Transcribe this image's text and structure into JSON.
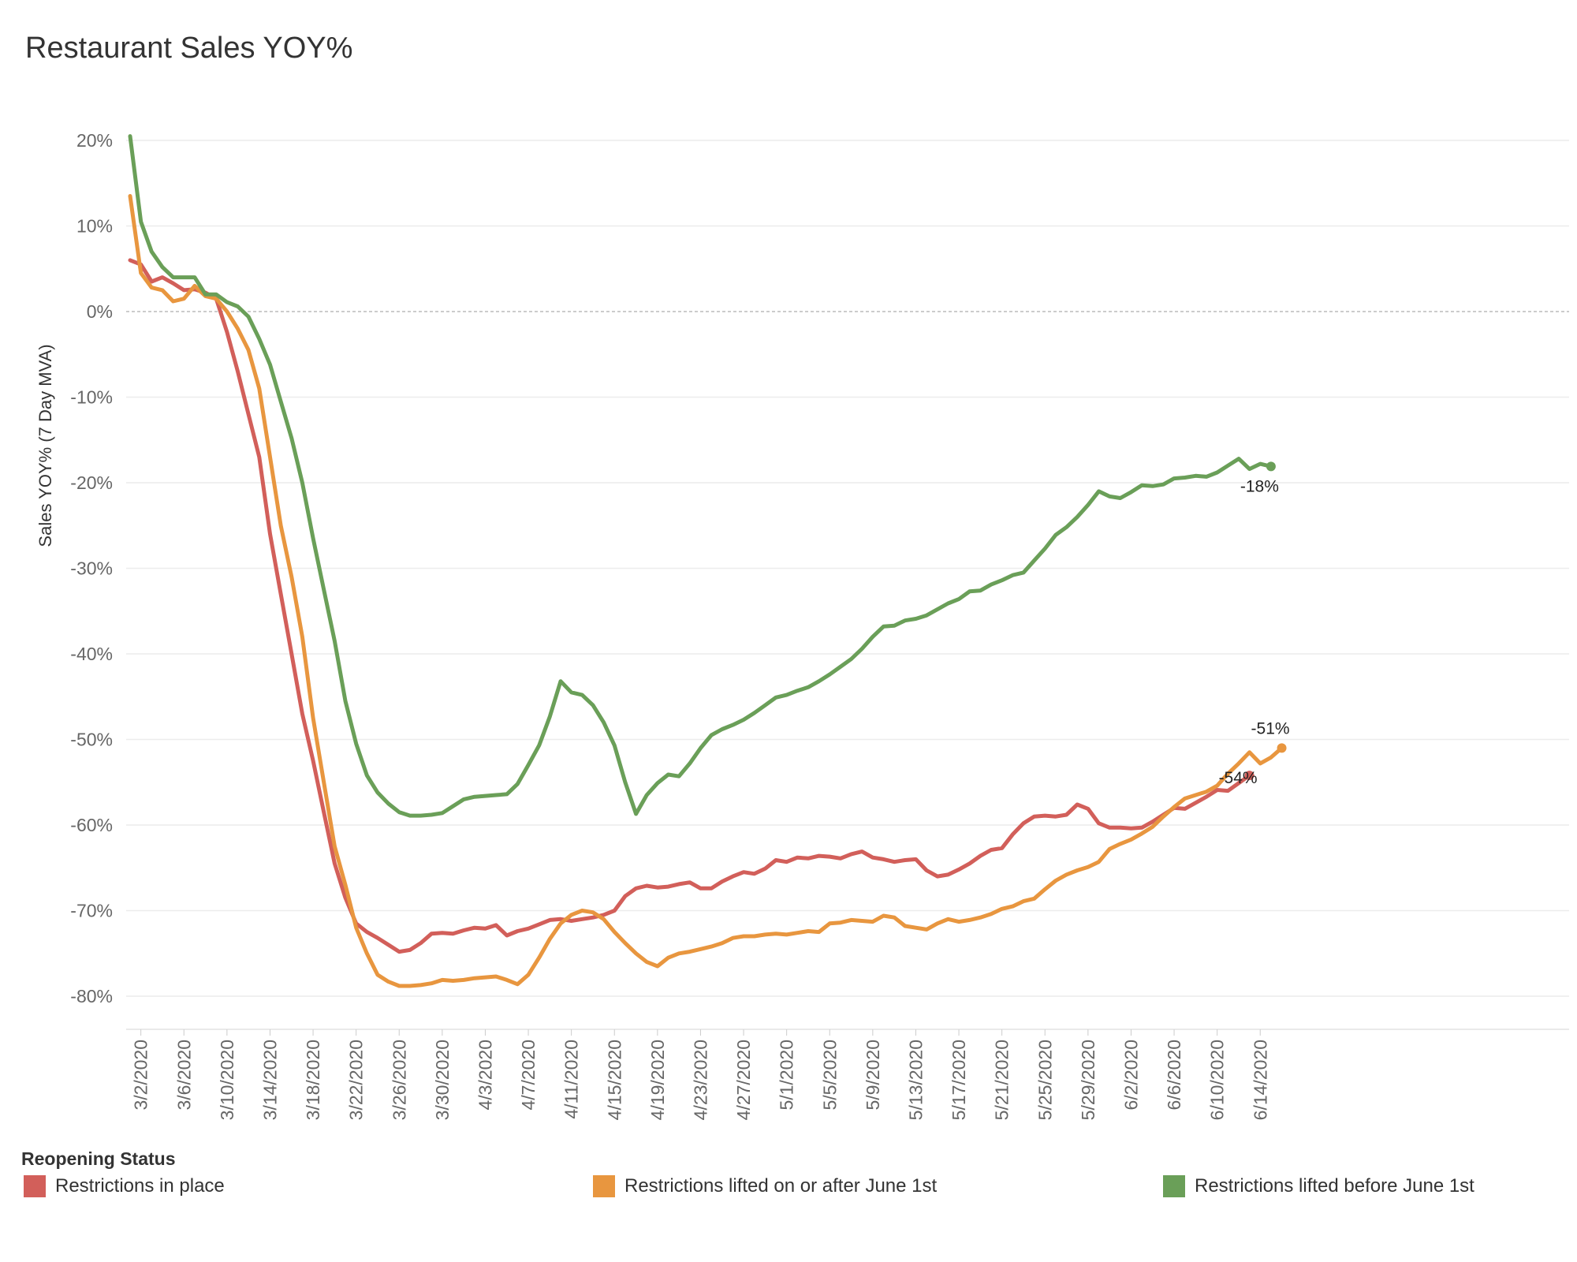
{
  "title": "Restaurant Sales YOY%",
  "chart_data": {
    "type": "line",
    "title": "Restaurant Sales YOY%",
    "xlabel": "",
    "ylabel": "Sales YOY% (7 Day MVA)",
    "x_start": "3/1/2020",
    "x_end": "6/17/2020",
    "x_tick_labels": [
      "3/2/2020",
      "3/6/2020",
      "3/10/2020",
      "3/14/2020",
      "3/18/2020",
      "3/22/2020",
      "3/26/2020",
      "3/30/2020",
      "4/3/2020",
      "4/7/2020",
      "4/11/2020",
      "4/15/2020",
      "4/19/2020",
      "4/23/2020",
      "4/27/2020",
      "5/1/2020",
      "5/5/2020",
      "5/9/2020",
      "5/13/2020",
      "5/17/2020",
      "5/21/2020",
      "5/25/2020",
      "5/29/2020",
      "6/2/2020",
      "6/6/2020",
      "6/10/2020",
      "6/14/2020"
    ],
    "y_ticks": [
      20,
      10,
      0,
      -10,
      -20,
      -30,
      -40,
      -50,
      -60,
      -70,
      -80
    ],
    "y_tick_labels": [
      "20%",
      "10%",
      "0%",
      "-10%",
      "-20%",
      "-30%",
      "-40%",
      "-50%",
      "-60%",
      "-70%",
      "-80%"
    ],
    "ylim": [
      -84,
      22
    ],
    "zero_line": true,
    "grid": true,
    "legend": {
      "title": "Reopening Status",
      "position": "bottom"
    },
    "series": [
      {
        "name": "Restrictions in place",
        "color": "#d25f5a",
        "end_label": "-54%",
        "values": [
          6,
          5.5,
          3.5,
          4,
          3.3,
          2.5,
          2.6,
          2.2,
          1.5,
          -2.4,
          -7,
          -12,
          -17,
          -26,
          -33,
          -40,
          -47,
          -52.5,
          -58.5,
          -64.5,
          -68.5,
          -71.5,
          -72.5,
          -73.2,
          -74,
          -74.8,
          -74.6,
          -73.8,
          -72.7,
          -72.6,
          -72.7,
          -72.3,
          -72,
          -72.1,
          -71.7,
          -72.9,
          -72.4,
          -72.1,
          -71.6,
          -71.1,
          -71,
          -71.2,
          -71,
          -70.8,
          -70.5,
          -70,
          -68.3,
          -67.4,
          -67.1,
          -67.3,
          -67.2,
          -66.9,
          -66.7,
          -67.4,
          -67.4,
          -66.6,
          -66,
          -65.5,
          -65.7,
          -65.1,
          -64.1,
          -64.3,
          -63.8,
          -63.9,
          -63.6,
          -63.7,
          -63.9,
          -63.4,
          -63.1,
          -63.8,
          -64,
          -64.3,
          -64.1,
          -64,
          -65.3,
          -66,
          -65.8,
          -65.2,
          -64.5,
          -63.6,
          -62.9,
          -62.7,
          -61.1,
          -59.8,
          -59,
          -58.9,
          -59,
          -58.8,
          -57.6,
          -58.1,
          -59.8,
          -60.3,
          -60.3,
          -60.4,
          -60.3,
          -59.6,
          -58.8,
          -58,
          -58.1,
          -57.4,
          -56.7,
          -55.9,
          -56,
          -55.1,
          -54.2
        ]
      },
      {
        "name": "Restrictions lifted on or after June 1st",
        "color": "#e8963f",
        "end_label": "-51%",
        "values": [
          13.5,
          4.5,
          2.8,
          2.5,
          1.2,
          1.5,
          3,
          1.8,
          1.5,
          0,
          -2,
          -4.5,
          -9,
          -17,
          -25,
          -31,
          -38,
          -47.5,
          -55,
          -62.5,
          -67,
          -72,
          -75,
          -77.5,
          -78.3,
          -78.8,
          -78.8,
          -78.7,
          -78.5,
          -78.1,
          -78.2,
          -78.1,
          -77.9,
          -77.8,
          -77.7,
          -78.1,
          -78.6,
          -77.5,
          -75.5,
          -73.3,
          -71.5,
          -70.5,
          -70,
          -70.2,
          -71,
          -72.5,
          -73.8,
          -75,
          -76,
          -76.5,
          -75.5,
          -75,
          -74.8,
          -74.5,
          -74.2,
          -73.8,
          -73.2,
          -73,
          -73,
          -72.8,
          -72.7,
          -72.8,
          -72.6,
          -72.4,
          -72.5,
          -71.5,
          -71.4,
          -71.1,
          -71.2,
          -71.3,
          -70.6,
          -70.8,
          -71.8,
          -72,
          -72.2,
          -71.5,
          -71,
          -71.3,
          -71.1,
          -70.8,
          -70.4,
          -69.8,
          -69.5,
          -68.9,
          -68.6,
          -67.5,
          -66.5,
          -65.8,
          -65.3,
          -64.9,
          -64.3,
          -62.8,
          -62.2,
          -61.7,
          -61,
          -60.2,
          -59,
          -57.9,
          -56.9,
          -56.5,
          -56.1,
          -55.4,
          -54,
          -52.8,
          -51.5,
          -52.8,
          -52.1,
          -51
        ]
      },
      {
        "name": "Restrictions lifted before June 1st",
        "color": "#6a9f58",
        "end_label": "-18%",
        "values": [
          20.5,
          10.5,
          7,
          5.2,
          4,
          4,
          4,
          2,
          2,
          1.1,
          0.6,
          -0.6,
          -3.2,
          -6.2,
          -10.5,
          -14.8,
          -20,
          -26.5,
          -32.5,
          -38.5,
          -45.5,
          -50.5,
          -54.2,
          -56.2,
          -57.5,
          -58.5,
          -58.9,
          -58.9,
          -58.8,
          -58.6,
          -57.8,
          -57,
          -56.7,
          -56.6,
          -56.5,
          -56.4,
          -55.2,
          -53,
          -50.7,
          -47.3,
          -43.2,
          -44.5,
          -44.8,
          -46,
          -48,
          -50.7,
          -55,
          -58.7,
          -56.5,
          -55.1,
          -54.1,
          -54.3,
          -52.8,
          -51,
          -49.5,
          -48.8,
          -48.3,
          -47.7,
          -46.9,
          -46,
          -45.1,
          -44.8,
          -44.3,
          -43.9,
          -43.2,
          -42.4,
          -41.5,
          -40.6,
          -39.4,
          -38,
          -36.8,
          -36.7,
          -36.1,
          -35.9,
          -35.5,
          -34.8,
          -34.1,
          -33.6,
          -32.7,
          -32.6,
          -31.9,
          -31.4,
          -30.8,
          -30.5,
          -29.1,
          -27.7,
          -26.1,
          -25.2,
          -24,
          -22.6,
          -21,
          -21.6,
          -21.8,
          -21.1,
          -20.3,
          -20.4,
          -20.2,
          -19.5,
          -19.4,
          -19.2,
          -19.3,
          -18.8,
          -18,
          -17.2,
          -18.4,
          -17.8,
          -18.1
        ]
      }
    ]
  }
}
